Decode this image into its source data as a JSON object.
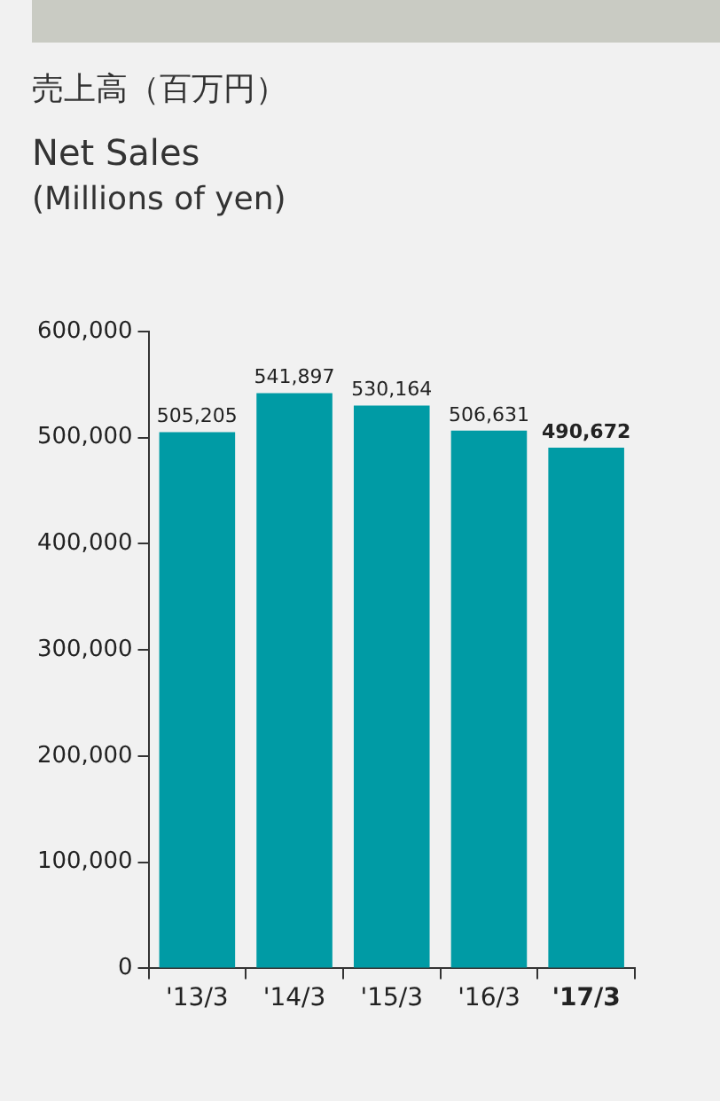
{
  "chart_data": {
    "type": "bar",
    "title": "売上高（百万円）",
    "subtitle": "Net Sales",
    "ylabel": "(Millions of yen)",
    "categories": [
      "'13/3",
      "'14/3",
      "'15/3",
      "'16/3",
      "'17/3"
    ],
    "values": [
      505205,
      541897,
      530164,
      506631,
      490672
    ],
    "value_labels": [
      "505,205",
      "541,897",
      "530,164",
      "506,631",
      "490,672"
    ],
    "color": "#009ba5",
    "ylim": [
      0,
      600000
    ],
    "yticks": [
      0,
      {
        "value": 100000,
        "label": "100,000"
      },
      {
        "value": 200000,
        "label": "200,000"
      },
      {
        "value": 300000,
        "label": "300,000"
      },
      {
        "value": 400000,
        "label": "400,000"
      },
      {
        "value": 500000,
        "label": "500,000"
      },
      {
        "value": 600000,
        "label": "600,000"
      }
    ],
    "grid": false,
    "legend": false
  }
}
